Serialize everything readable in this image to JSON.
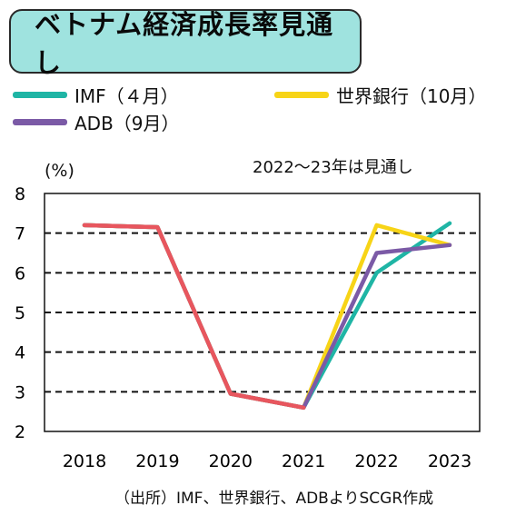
{
  "chart_data": {
    "type": "line",
    "title": "ベトナム経済成長率見通し",
    "annotation": "2022～23年は見通し",
    "ylabel": "(%)",
    "xlabel": "",
    "source": "（出所）IMF、世界銀行、ADBよりSCGR作成",
    "categories": [
      "2018",
      "2019",
      "2020",
      "2021",
      "2022",
      "2023"
    ],
    "ylim": [
      2,
      8
    ],
    "yticks": [
      "8",
      "7",
      "6",
      "5",
      "4",
      "3",
      "2"
    ],
    "grid": "horizontal dashed",
    "legend_position": "top",
    "series": [
      {
        "name": "IMF（４月）",
        "color": "#1FB5A5",
        "values": [
          7.2,
          7.15,
          2.95,
          2.6,
          6.0,
          7.25
        ]
      },
      {
        "name": "世界銀行（10月）",
        "color": "#F7D417",
        "values": [
          7.2,
          7.15,
          2.95,
          2.6,
          7.2,
          6.7
        ]
      },
      {
        "name": "ADB（9月）",
        "color": "#7B5AA6",
        "values": [
          7.2,
          7.15,
          2.95,
          2.6,
          6.5,
          6.7
        ]
      },
      {
        "name": "",
        "color": "#E8565E",
        "values": [
          7.2,
          7.15,
          2.95,
          2.6,
          null,
          null
        ]
      }
    ]
  }
}
